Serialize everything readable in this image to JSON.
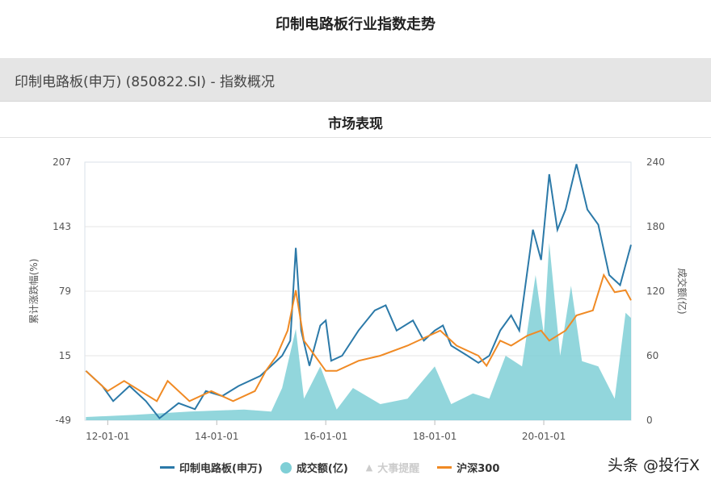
{
  "page_title": "印制电路板行业指数走势",
  "section_bar": "印制电路板(申万) (850822.SI) - 指数概况",
  "subtitle": "市场表现",
  "watermark": "头条 @投行X",
  "chart_data": {
    "type": "line",
    "ylabel_left": "累计涨跌幅(%)",
    "ylabel_right": "成交额(亿)",
    "yticks_left": [
      "207",
      "143",
      "79",
      "15",
      "-49"
    ],
    "yticks_right": [
      "240",
      "180",
      "120",
      "60",
      "0"
    ],
    "ylim_left": [
      -49,
      207
    ],
    "ylim_right": [
      0,
      240
    ],
    "xlim": [
      2011.58,
      2021.6
    ],
    "xticks": [
      {
        "label": "12-01-01",
        "x": 2012.0
      },
      {
        "label": "14-01-01",
        "x": 2014.0
      },
      {
        "label": "16-01-01",
        "x": 2016.0
      },
      {
        "label": "18-01-01",
        "x": 2018.0
      },
      {
        "label": "20-01-01",
        "x": 2020.0
      }
    ],
    "grid": true,
    "legend_position": "bottom",
    "legend": [
      {
        "label": "印制电路板(申万)",
        "color": "#2b79a8",
        "shape": "line"
      },
      {
        "label": "成交额(亿)",
        "color": "#7fcfd6",
        "shape": "circle"
      },
      {
        "label": "大事提醒",
        "color": "#cccccc",
        "shape": "triangle"
      },
      {
        "label": "沪深300",
        "color": "#f08a24",
        "shape": "line"
      }
    ],
    "series": [
      {
        "name": "印制电路板(申万)",
        "axis": "left",
        "color": "#2b79a8",
        "points": [
          [
            2011.6,
            0
          ],
          [
            2011.9,
            -15
          ],
          [
            2012.1,
            -30
          ],
          [
            2012.4,
            -15
          ],
          [
            2012.7,
            -30
          ],
          [
            2012.95,
            -47
          ],
          [
            2013.3,
            -32
          ],
          [
            2013.6,
            -38
          ],
          [
            2013.8,
            -20
          ],
          [
            2014.1,
            -25
          ],
          [
            2014.4,
            -15
          ],
          [
            2014.8,
            -5
          ],
          [
            2015.0,
            5
          ],
          [
            2015.2,
            15
          ],
          [
            2015.35,
            30
          ],
          [
            2015.45,
            122
          ],
          [
            2015.55,
            40
          ],
          [
            2015.7,
            5
          ],
          [
            2015.9,
            45
          ],
          [
            2016.0,
            50
          ],
          [
            2016.1,
            10
          ],
          [
            2016.3,
            15
          ],
          [
            2016.6,
            40
          ],
          [
            2016.9,
            60
          ],
          [
            2017.1,
            65
          ],
          [
            2017.3,
            40
          ],
          [
            2017.6,
            50
          ],
          [
            2017.8,
            30
          ],
          [
            2018.0,
            40
          ],
          [
            2018.15,
            45
          ],
          [
            2018.3,
            25
          ],
          [
            2018.6,
            15
          ],
          [
            2018.8,
            8
          ],
          [
            2019.0,
            15
          ],
          [
            2019.2,
            40
          ],
          [
            2019.4,
            55
          ],
          [
            2019.55,
            40
          ],
          [
            2019.8,
            140
          ],
          [
            2019.95,
            110
          ],
          [
            2020.1,
            195
          ],
          [
            2020.25,
            140
          ],
          [
            2020.4,
            160
          ],
          [
            2020.6,
            205
          ],
          [
            2020.8,
            160
          ],
          [
            2021.0,
            145
          ],
          [
            2021.2,
            95
          ],
          [
            2021.4,
            85
          ],
          [
            2021.6,
            125
          ]
        ]
      },
      {
        "name": "成交额(亿)",
        "axis": "right",
        "color": "#7fcfd6",
        "points": [
          [
            2011.6,
            3
          ],
          [
            2012.5,
            5
          ],
          [
            2013.5,
            8
          ],
          [
            2014.5,
            10
          ],
          [
            2015.0,
            8
          ],
          [
            2015.2,
            30
          ],
          [
            2015.45,
            85
          ],
          [
            2015.6,
            20
          ],
          [
            2015.9,
            50
          ],
          [
            2016.2,
            10
          ],
          [
            2016.5,
            30
          ],
          [
            2017.0,
            15
          ],
          [
            2017.5,
            20
          ],
          [
            2018.0,
            50
          ],
          [
            2018.3,
            15
          ],
          [
            2018.7,
            25
          ],
          [
            2019.0,
            20
          ],
          [
            2019.3,
            60
          ],
          [
            2019.6,
            50
          ],
          [
            2019.85,
            135
          ],
          [
            2020.0,
            80
          ],
          [
            2020.1,
            165
          ],
          [
            2020.3,
            60
          ],
          [
            2020.5,
            125
          ],
          [
            2020.7,
            55
          ],
          [
            2021.0,
            50
          ],
          [
            2021.3,
            20
          ],
          [
            2021.5,
            100
          ],
          [
            2021.6,
            95
          ]
        ]
      },
      {
        "name": "沪深300",
        "axis": "left",
        "color": "#f08a24",
        "points": [
          [
            2011.6,
            0
          ],
          [
            2012.0,
            -20
          ],
          [
            2012.3,
            -10
          ],
          [
            2012.9,
            -30
          ],
          [
            2013.1,
            -10
          ],
          [
            2013.5,
            -30
          ],
          [
            2013.9,
            -20
          ],
          [
            2014.3,
            -30
          ],
          [
            2014.7,
            -20
          ],
          [
            2014.9,
            0
          ],
          [
            2015.1,
            15
          ],
          [
            2015.3,
            40
          ],
          [
            2015.45,
            80
          ],
          [
            2015.6,
            30
          ],
          [
            2015.8,
            15
          ],
          [
            2016.0,
            0
          ],
          [
            2016.2,
            0
          ],
          [
            2016.6,
            10
          ],
          [
            2017.0,
            15
          ],
          [
            2017.5,
            25
          ],
          [
            2017.9,
            35
          ],
          [
            2018.1,
            40
          ],
          [
            2018.4,
            25
          ],
          [
            2018.8,
            15
          ],
          [
            2018.95,
            5
          ],
          [
            2019.2,
            30
          ],
          [
            2019.4,
            25
          ],
          [
            2019.7,
            35
          ],
          [
            2019.95,
            40
          ],
          [
            2020.1,
            30
          ],
          [
            2020.4,
            40
          ],
          [
            2020.6,
            55
          ],
          [
            2020.9,
            60
          ],
          [
            2021.1,
            95
          ],
          [
            2021.3,
            78
          ],
          [
            2021.5,
            80
          ],
          [
            2021.6,
            70
          ]
        ]
      }
    ]
  }
}
